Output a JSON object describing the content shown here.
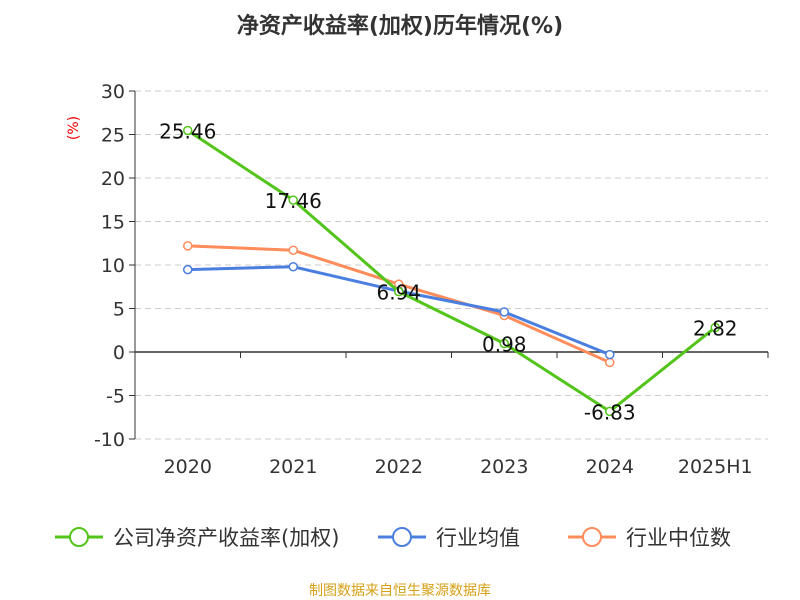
{
  "chart_data": {
    "type": "line",
    "title": "净资产收益率(加权)历年情况(%)",
    "ylabel": "(%)",
    "categories": [
      "2020",
      "2021",
      "2022",
      "2023",
      "2024",
      "2025H1"
    ],
    "ylim": [
      -10,
      30
    ],
    "yticks": [
      30,
      25,
      20,
      15,
      10,
      5,
      0,
      -5,
      -10
    ],
    "grid": true,
    "legend_position": "bottom",
    "series": [
      {
        "name": "公司净资产收益率(加权)",
        "color": "#52c41a",
        "values": [
          25.46,
          17.46,
          6.94,
          0.98,
          -6.83,
          2.82
        ],
        "labels": [
          "25.46",
          "17.46",
          "6.94",
          "0.98",
          "-6.83",
          "2.82"
        ]
      },
      {
        "name": "行业均值",
        "color": "#4a7fe0",
        "values": [
          9.47,
          9.8,
          7.0,
          4.6,
          -0.3,
          null
        ]
      },
      {
        "name": "行业中位数",
        "color": "#ff8c5a",
        "values": [
          12.2,
          11.7,
          7.8,
          4.2,
          -1.2,
          null
        ]
      }
    ]
  },
  "footer": {
    "source": "制图数据来自恒生聚源数据库",
    "color": "#d4a017"
  }
}
